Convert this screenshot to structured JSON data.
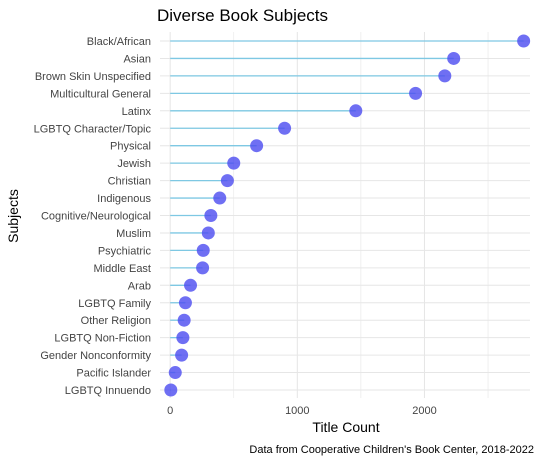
{
  "chart_data": {
    "type": "lollipop",
    "title": "Diverse Book Subjects",
    "xlabel": "Title Count",
    "ylabel": "Subjects",
    "caption": "Data from Cooperative Children's Book Center, 2018-2022",
    "xlim": [
      -80,
      2830
    ],
    "xticks": [
      0,
      1000,
      2000
    ],
    "grid": true,
    "colors": {
      "stem": "#7ec8e3",
      "point": "#4b4bf0",
      "grid": "#e6e6e6"
    },
    "categories": [
      "Black/African",
      "Asian",
      "Brown Skin Unspecified",
      "Multicultural General",
      "Latinx",
      "LGBTQ Character/Topic",
      "Physical",
      "Jewish",
      "Christian",
      "Indigenous",
      "Cognitive/Neurological",
      "Muslim",
      "Psychiatric",
      "Middle East",
      "Arab",
      "LGBTQ Family",
      "Other Religion",
      "LGBTQ Non-Fiction",
      "Gender Nonconformity",
      "Pacific Islander",
      "LGBTQ Innuendo"
    ],
    "values": [
      2780,
      2230,
      2160,
      1930,
      1460,
      900,
      680,
      500,
      450,
      390,
      320,
      300,
      260,
      255,
      160,
      120,
      110,
      100,
      90,
      40,
      5
    ]
  }
}
